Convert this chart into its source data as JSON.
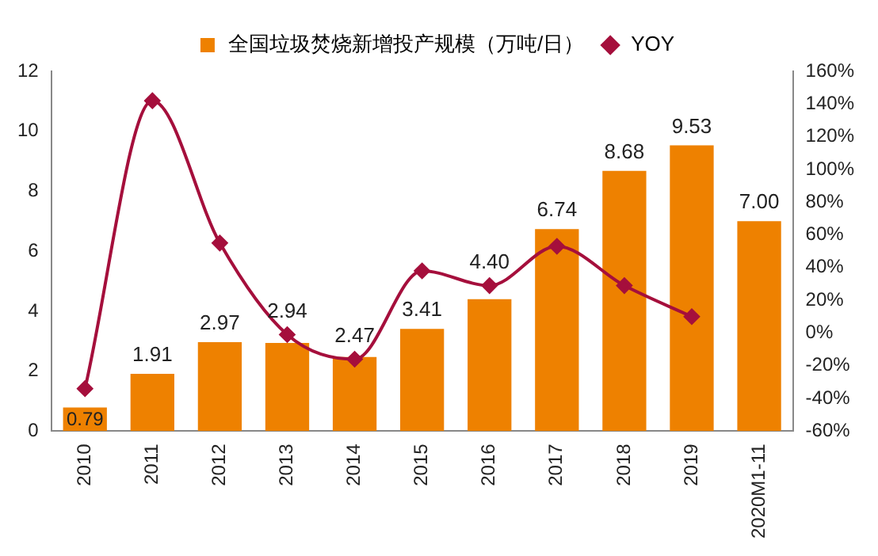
{
  "chart_data": {
    "type": "bar",
    "categories": [
      "2010",
      "2011",
      "2012",
      "2013",
      "2014",
      "2015",
      "2016",
      "2017",
      "2018",
      "2019",
      "2020M1-11"
    ],
    "series": [
      {
        "name": "全国垃圾焚烧新增投产规模（万吨/日）",
        "color": "#ee8100",
        "values": [
          0.79,
          1.91,
          2.97,
          2.94,
          2.47,
          3.41,
          4.4,
          6.74,
          8.68,
          9.53,
          7.0
        ],
        "value_labels": [
          "0.79",
          "1.91",
          "2.97",
          "2.94",
          "2.47",
          "3.41",
          "4.40",
          "6.74",
          "8.68",
          "9.53",
          "7.00"
        ]
      },
      {
        "name": "YOY",
        "type": "line",
        "axis": "y2",
        "color": "#a50f3c",
        "marker": "diamond",
        "values": [
          -34,
          142,
          55,
          -1,
          -16,
          38,
          29,
          53,
          29,
          10,
          null
        ]
      }
    ],
    "ylim": [
      0,
      12
    ],
    "yticks": [
      0,
      2,
      4,
      6,
      8,
      10,
      12
    ],
    "y2lim": [
      -60,
      160
    ],
    "y2ticks": [
      {
        "value": -60,
        "label": "-60%"
      },
      {
        "value": -40,
        "label": "-40%"
      },
      {
        "value": -20,
        "label": "-20%"
      },
      {
        "value": 0,
        "label": "0%"
      },
      {
        "value": 20,
        "label": "20%"
      },
      {
        "value": 40,
        "label": "40%"
      },
      {
        "value": 60,
        "label": "60%"
      },
      {
        "value": 80,
        "label": "80%"
      },
      {
        "value": 100,
        "label": "100%"
      },
      {
        "value": 120,
        "label": "120%"
      },
      {
        "value": 140,
        "label": "140%"
      },
      {
        "value": 160,
        "label": "160%"
      }
    ],
    "grid": false,
    "legend": "top"
  }
}
